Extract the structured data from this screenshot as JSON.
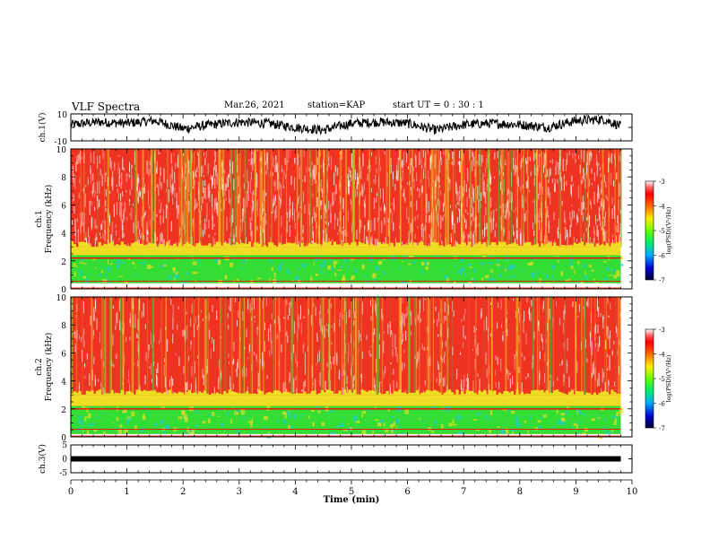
{
  "header": {
    "title": "VLF Spectra",
    "date": "Mar.26, 2021",
    "station": "station=KAP",
    "start": "start  UT =   0 : 30 : 1"
  },
  "colors": {
    "spectro_top": "#ee3322",
    "spectro_noise": "#ffffff",
    "yellow_band": "#eedd22",
    "green_band": "#33dd33",
    "cyan_band": "#22cccc",
    "line": "#ff0000",
    "frame": "#000000"
  },
  "chart_data": [
    {
      "type": "line",
      "panel": "ch1-waveform",
      "ylabel": "ch.1(V)",
      "ylim": [
        -10,
        10
      ],
      "ytick_labels": [
        "10",
        "-10"
      ],
      "x": [
        0,
        0.5,
        1,
        1.5,
        2,
        2.5,
        3,
        3.5,
        4,
        4.5,
        5,
        5.5,
        6,
        6.5,
        7,
        7.5,
        8,
        8.5,
        9,
        9.5,
        9.8
      ],
      "y": [
        2,
        4,
        3,
        5,
        -1,
        2,
        4,
        3,
        0,
        -2,
        3,
        4,
        3,
        -2,
        2,
        3,
        2,
        0,
        5,
        6,
        1
      ],
      "xlim": [
        0,
        10
      ]
    },
    {
      "type": "heatmap",
      "panel": "ch1-spectrogram",
      "ylabel": "ch.1\nFrequency (kHz)",
      "ylim": [
        0,
        10
      ],
      "ytick_labels": [
        "0",
        "2",
        "4",
        "6",
        "8",
        "10"
      ],
      "xlim": [
        0,
        10
      ],
      "data_end_min": 9.8,
      "colorbar": {
        "label": "log(PSD)(V²/Hz)",
        "range": [
          -7,
          -3
        ],
        "tick_labels": [
          "-3",
          "-4",
          "-5",
          "-6",
          "-7"
        ]
      },
      "bands_khz": {
        "red_above": 3.0,
        "yellow_to": 3.0,
        "green_to": 2.4,
        "line_at": 2.2,
        "gap_from": 0.0,
        "gap_to": 0.4
      }
    },
    {
      "type": "heatmap",
      "panel": "ch2-spectrogram",
      "ylabel": "ch.2\nFrequency (kHz)",
      "ylim": [
        0,
        10
      ],
      "ytick_labels": [
        "0",
        "2",
        "4",
        "6",
        "8",
        "10"
      ],
      "xlim": [
        0,
        10
      ],
      "data_end_min": 9.8,
      "colorbar": {
        "label": "log(PSD)(V²/Hz)",
        "range": [
          -7,
          -3
        ],
        "tick_labels": [
          "-3",
          "-4",
          "-5",
          "-6",
          "-7"
        ]
      },
      "bands_khz": {
        "red_above": 3.0,
        "yellow_to": 3.0,
        "green_to": 2.2,
        "line_at": 2.0,
        "gap_from": 0.0,
        "gap_to": 0.2
      }
    },
    {
      "type": "line",
      "panel": "ch3-waveform",
      "ylabel": "ch.3(V)",
      "ylim": [
        -5,
        5
      ],
      "ytick_labels": [
        "5",
        "0",
        "-5"
      ],
      "x": [
        0,
        9.8
      ],
      "y": [
        0,
        0
      ],
      "xlim": [
        0,
        10
      ],
      "xlabel": "Time (min)",
      "xtick_labels": [
        "0",
        "1",
        "2",
        "3",
        "4",
        "5",
        "6",
        "7",
        "8",
        "9",
        "10"
      ]
    }
  ]
}
